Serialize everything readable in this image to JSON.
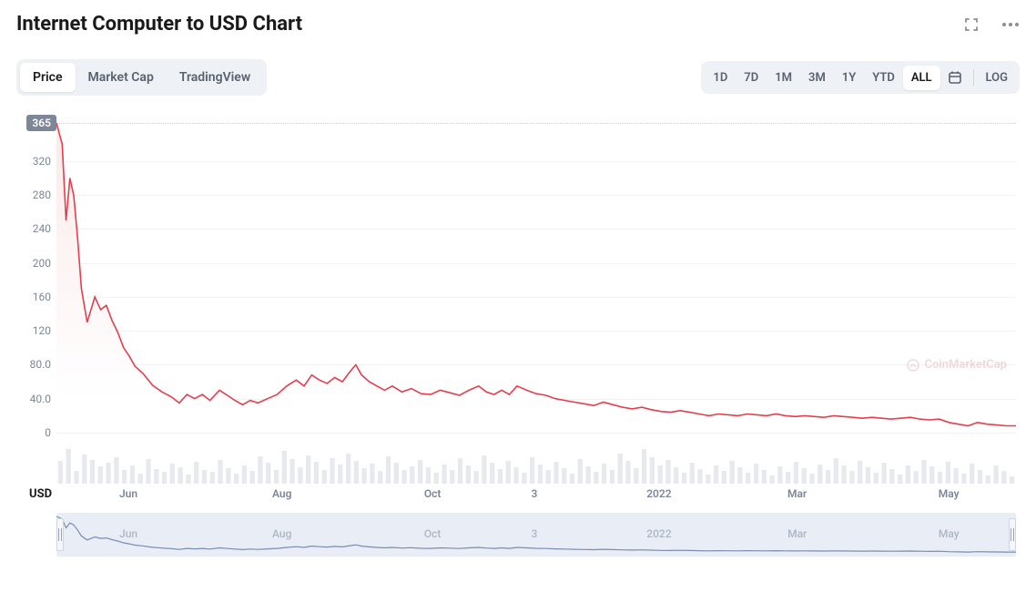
{
  "title": "Internet Computer to USD Chart",
  "tabs": {
    "items": [
      "Price",
      "Market Cap",
      "TradingView"
    ],
    "active_index": 0
  },
  "ranges": {
    "items": [
      "1D",
      "7D",
      "1M",
      "3M",
      "1Y",
      "YTD",
      "ALL"
    ],
    "active_index": 6,
    "log_label": "LOG"
  },
  "watermark": "CoinMarketCap",
  "chart": {
    "type": "line-area",
    "line_color": "#e53e4d",
    "line_width": 1.6,
    "area_top_color": "#fbeaea",
    "area_bottom_color": "#ffffff",
    "background_color": "#ffffff",
    "grid_color": "#f2f2f4",
    "dotted_top_color": "#cfcfcf",
    "ylim": [
      0,
      365
    ],
    "ytick_step": 40,
    "yticks": [
      0,
      40,
      80,
      120,
      160,
      200,
      240,
      280,
      320
    ],
    "current_value_badge": 365,
    "x_currency_label": "USD",
    "xticks": [
      {
        "pos": 0.075,
        "label": "Jun"
      },
      {
        "pos": 0.235,
        "label": "Aug"
      },
      {
        "pos": 0.392,
        "label": "Oct"
      },
      {
        "pos": 0.498,
        "label": "3"
      },
      {
        "pos": 0.628,
        "label": "2022"
      },
      {
        "pos": 0.772,
        "label": "Mar"
      },
      {
        "pos": 0.93,
        "label": "May"
      }
    ],
    "series": [
      [
        0.0,
        365
      ],
      [
        0.006,
        340
      ],
      [
        0.01,
        250
      ],
      [
        0.014,
        300
      ],
      [
        0.018,
        280
      ],
      [
        0.022,
        230
      ],
      [
        0.026,
        170
      ],
      [
        0.032,
        130
      ],
      [
        0.04,
        160
      ],
      [
        0.046,
        145
      ],
      [
        0.052,
        150
      ],
      [
        0.058,
        132
      ],
      [
        0.064,
        118
      ],
      [
        0.07,
        100
      ],
      [
        0.076,
        90
      ],
      [
        0.082,
        78
      ],
      [
        0.09,
        70
      ],
      [
        0.1,
        56
      ],
      [
        0.11,
        48
      ],
      [
        0.12,
        42
      ],
      [
        0.128,
        35
      ],
      [
        0.136,
        45
      ],
      [
        0.144,
        40
      ],
      [
        0.152,
        45
      ],
      [
        0.16,
        38
      ],
      [
        0.17,
        50
      ],
      [
        0.178,
        44
      ],
      [
        0.186,
        38
      ],
      [
        0.194,
        33
      ],
      [
        0.202,
        38
      ],
      [
        0.21,
        35
      ],
      [
        0.22,
        40
      ],
      [
        0.23,
        45
      ],
      [
        0.24,
        55
      ],
      [
        0.25,
        62
      ],
      [
        0.258,
        55
      ],
      [
        0.266,
        68
      ],
      [
        0.274,
        62
      ],
      [
        0.282,
        58
      ],
      [
        0.29,
        65
      ],
      [
        0.298,
        60
      ],
      [
        0.306,
        72
      ],
      [
        0.312,
        80
      ],
      [
        0.318,
        68
      ],
      [
        0.326,
        60
      ],
      [
        0.334,
        55
      ],
      [
        0.342,
        50
      ],
      [
        0.35,
        55
      ],
      [
        0.36,
        48
      ],
      [
        0.37,
        52
      ],
      [
        0.38,
        46
      ],
      [
        0.39,
        45
      ],
      [
        0.4,
        50
      ],
      [
        0.41,
        47
      ],
      [
        0.42,
        44
      ],
      [
        0.43,
        50
      ],
      [
        0.44,
        55
      ],
      [
        0.448,
        48
      ],
      [
        0.456,
        45
      ],
      [
        0.464,
        50
      ],
      [
        0.472,
        45
      ],
      [
        0.48,
        55
      ],
      [
        0.49,
        50
      ],
      [
        0.5,
        46
      ],
      [
        0.51,
        44
      ],
      [
        0.52,
        40
      ],
      [
        0.53,
        38
      ],
      [
        0.54,
        36
      ],
      [
        0.55,
        34
      ],
      [
        0.56,
        32
      ],
      [
        0.57,
        36
      ],
      [
        0.58,
        33
      ],
      [
        0.59,
        30
      ],
      [
        0.6,
        28
      ],
      [
        0.61,
        30
      ],
      [
        0.62,
        27
      ],
      [
        0.63,
        25
      ],
      [
        0.64,
        24
      ],
      [
        0.65,
        26
      ],
      [
        0.66,
        24
      ],
      [
        0.67,
        22
      ],
      [
        0.68,
        20
      ],
      [
        0.69,
        22
      ],
      [
        0.7,
        21
      ],
      [
        0.71,
        20
      ],
      [
        0.72,
        22
      ],
      [
        0.73,
        21
      ],
      [
        0.74,
        20
      ],
      [
        0.75,
        22
      ],
      [
        0.76,
        20
      ],
      [
        0.77,
        19
      ],
      [
        0.78,
        20
      ],
      [
        0.79,
        19
      ],
      [
        0.8,
        18
      ],
      [
        0.81,
        20
      ],
      [
        0.82,
        19
      ],
      [
        0.83,
        18
      ],
      [
        0.84,
        17
      ],
      [
        0.85,
        18
      ],
      [
        0.86,
        17
      ],
      [
        0.87,
        16
      ],
      [
        0.88,
        17
      ],
      [
        0.89,
        18
      ],
      [
        0.9,
        16
      ],
      [
        0.91,
        15
      ],
      [
        0.92,
        16
      ],
      [
        0.93,
        12
      ],
      [
        0.94,
        10
      ],
      [
        0.95,
        8
      ],
      [
        0.96,
        12
      ],
      [
        0.97,
        10
      ],
      [
        0.98,
        9
      ],
      [
        0.99,
        8
      ],
      [
        1.0,
        8
      ]
    ]
  },
  "volume": {
    "bar_color": "#e8e9ef",
    "max": 1.0,
    "values": [
      0.5,
      0.76,
      0.28,
      0.64,
      0.52,
      0.38,
      0.46,
      0.58,
      0.3,
      0.4,
      0.22,
      0.54,
      0.32,
      0.26,
      0.44,
      0.36,
      0.2,
      0.48,
      0.3,
      0.26,
      0.52,
      0.34,
      0.22,
      0.4,
      0.28,
      0.6,
      0.46,
      0.3,
      0.72,
      0.54,
      0.36,
      0.62,
      0.48,
      0.3,
      0.56,
      0.42,
      0.66,
      0.5,
      0.34,
      0.44,
      0.28,
      0.6,
      0.46,
      0.3,
      0.38,
      0.52,
      0.36,
      0.24,
      0.42,
      0.3,
      0.56,
      0.4,
      0.28,
      0.62,
      0.46,
      0.32,
      0.5,
      0.36,
      0.24,
      0.58,
      0.42,
      0.3,
      0.48,
      0.34,
      0.22,
      0.54,
      0.38,
      0.26,
      0.44,
      0.3,
      0.66,
      0.5,
      0.34,
      0.76,
      0.58,
      0.4,
      0.52,
      0.36,
      0.24,
      0.46,
      0.32,
      0.2,
      0.4,
      0.28,
      0.5,
      0.36,
      0.24,
      0.44,
      0.3,
      0.18,
      0.38,
      0.26,
      0.48,
      0.34,
      0.22,
      0.42,
      0.3,
      0.56,
      0.4,
      0.28,
      0.5,
      0.36,
      0.24,
      0.46,
      0.32,
      0.2,
      0.4,
      0.28,
      0.52,
      0.38,
      0.26,
      0.48,
      0.34,
      0.22,
      0.44,
      0.3,
      0.18,
      0.4,
      0.28,
      0.16
    ]
  },
  "overview": {
    "line_color": "#7a8cb0",
    "background": "#e9eef6",
    "xticks": [
      {
        "pos": 0.075,
        "label": "Jun"
      },
      {
        "pos": 0.235,
        "label": "Aug"
      },
      {
        "pos": 0.392,
        "label": "Oct"
      },
      {
        "pos": 0.498,
        "label": "3"
      },
      {
        "pos": 0.628,
        "label": "2022"
      },
      {
        "pos": 0.772,
        "label": "Mar"
      },
      {
        "pos": 0.93,
        "label": "May"
      }
    ]
  }
}
